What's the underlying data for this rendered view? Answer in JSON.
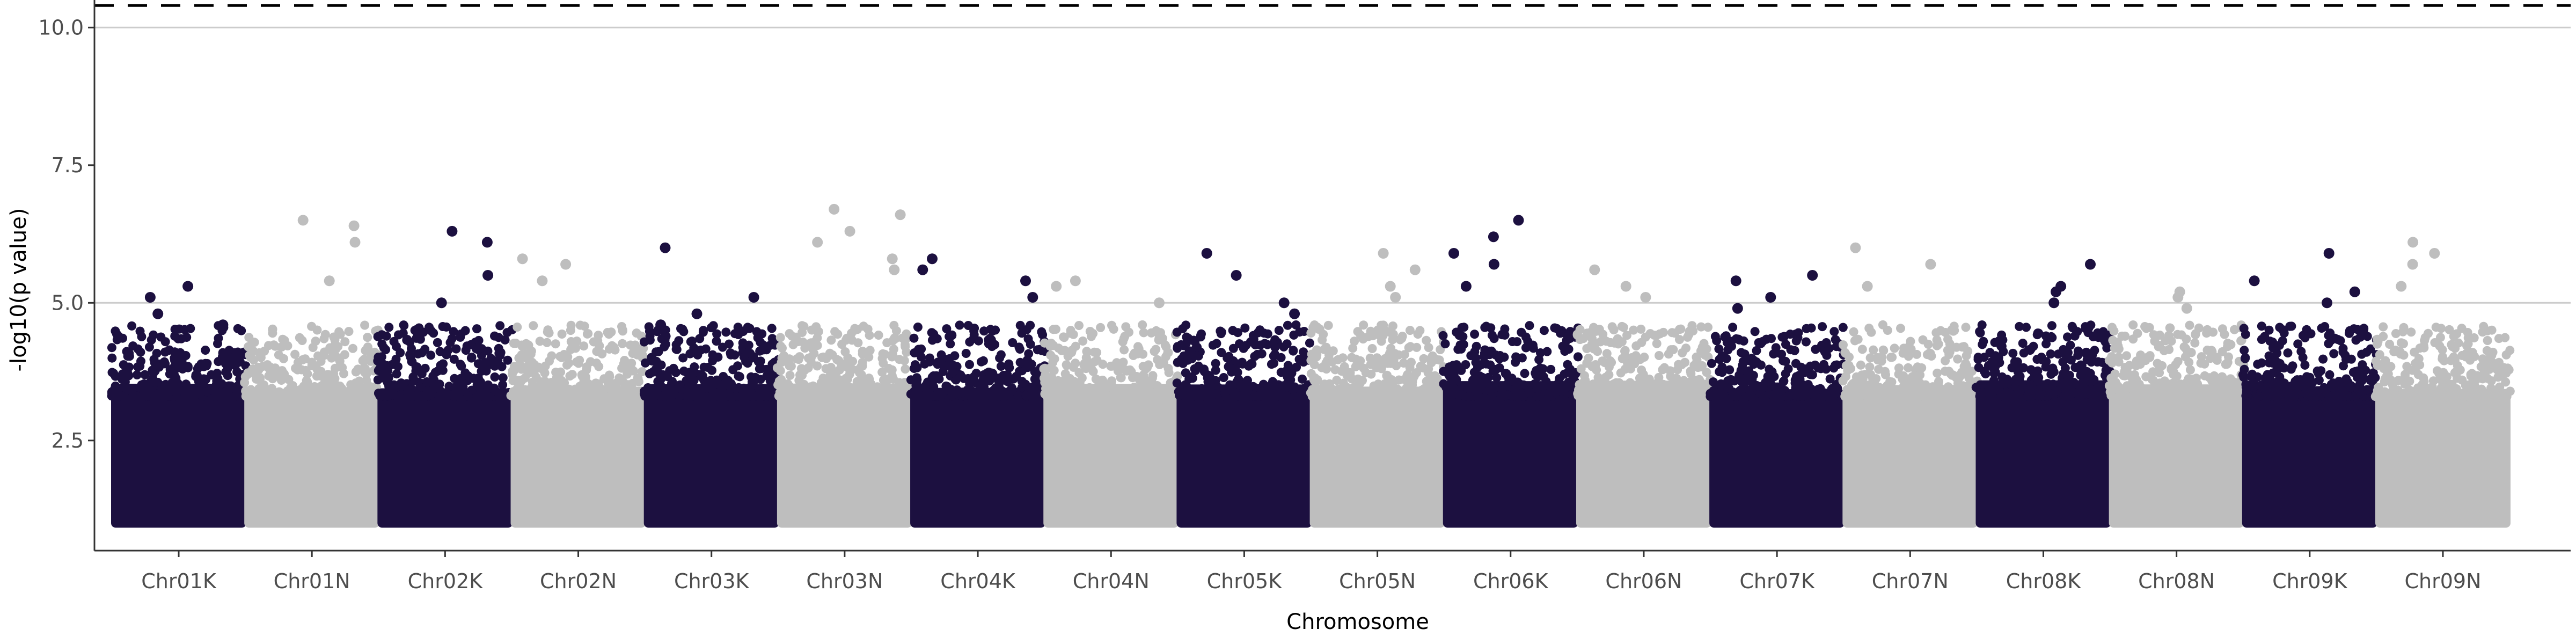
{
  "chart_data": {
    "type": "scatter",
    "xlabel": "Chromosome",
    "ylabel": "-log10(p value)",
    "ylim": [
      0.5,
      10.5
    ],
    "yticks": [
      "2.5",
      "5.0",
      "7.5",
      "10.0"
    ],
    "grid": "horizontal major lines at 5.0 and 10.0",
    "threshold": 10.4,
    "threshold_style": "dashed",
    "colors": {
      "odd": "#1c1040",
      "even": "#bebebe",
      "threshold": "#000000",
      "grid": "#cccccc",
      "axis": "#333333"
    },
    "categories": [
      "Chr01K",
      "Chr01N",
      "Chr02K",
      "Chr02N",
      "Chr03K",
      "Chr03N",
      "Chr04K",
      "Chr04N",
      "Chr05K",
      "Chr05N",
      "Chr06K",
      "Chr06N",
      "Chr07K",
      "Chr07N",
      "Chr08K",
      "Chr08N",
      "Chr09K",
      "Chr09N"
    ],
    "max_values": [
      5.3,
      6.5,
      6.3,
      5.8,
      6.0,
      6.7,
      5.8,
      5.4,
      5.9,
      5.9,
      6.5,
      5.6,
      5.5,
      6.0,
      5.7,
      5.2,
      5.9,
      6.1
    ],
    "series": [
      {
        "values": [
          {
            "x": "Chr01K",
            "y": 5.3
          },
          {
            "x": "Chr01K",
            "y": 5.1
          },
          {
            "x": "Chr01K",
            "y": 4.8
          },
          {
            "x": "Chr01K",
            "y": 4.6
          },
          {
            "x": "Chr01N",
            "y": 6.5
          },
          {
            "x": "Chr01N",
            "y": 6.4
          },
          {
            "x": "Chr01N",
            "y": 6.1
          },
          {
            "x": "Chr01N",
            "y": 5.4
          },
          {
            "x": "Chr02K",
            "y": 6.3
          },
          {
            "x": "Chr02K",
            "y": 6.1
          },
          {
            "x": "Chr02K",
            "y": 5.5
          },
          {
            "x": "Chr02K",
            "y": 5.0
          },
          {
            "x": "Chr02N",
            "y": 5.8
          },
          {
            "x": "Chr02N",
            "y": 5.7
          },
          {
            "x": "Chr02N",
            "y": 5.4
          },
          {
            "x": "Chr03K",
            "y": 6.0
          },
          {
            "x": "Chr03K",
            "y": 5.1
          },
          {
            "x": "Chr03K",
            "y": 4.8
          },
          {
            "x": "Chr03K",
            "y": 4.6
          },
          {
            "x": "Chr03N",
            "y": 6.7
          },
          {
            "x": "Chr03N",
            "y": 6.6
          },
          {
            "x": "Chr03N",
            "y": 6.3
          },
          {
            "x": "Chr03N",
            "y": 6.1
          },
          {
            "x": "Chr03N",
            "y": 5.8
          },
          {
            "x": "Chr03N",
            "y": 5.6
          },
          {
            "x": "Chr04K",
            "y": 5.8
          },
          {
            "x": "Chr04K",
            "y": 5.6
          },
          {
            "x": "Chr04K",
            "y": 5.4
          },
          {
            "x": "Chr04K",
            "y": 5.1
          },
          {
            "x": "Chr04N",
            "y": 5.4
          },
          {
            "x": "Chr04N",
            "y": 5.3
          },
          {
            "x": "Chr04N",
            "y": 5.0
          },
          {
            "x": "Chr05K",
            "y": 5.9
          },
          {
            "x": "Chr05K",
            "y": 5.5
          },
          {
            "x": "Chr05K",
            "y": 5.0
          },
          {
            "x": "Chr05K",
            "y": 4.8
          },
          {
            "x": "Chr05N",
            "y": 5.9
          },
          {
            "x": "Chr05N",
            "y": 5.6
          },
          {
            "x": "Chr05N",
            "y": 5.3
          },
          {
            "x": "Chr05N",
            "y": 5.1
          },
          {
            "x": "Chr06K",
            "y": 6.5
          },
          {
            "x": "Chr06K",
            "y": 6.2
          },
          {
            "x": "Chr06K",
            "y": 5.9
          },
          {
            "x": "Chr06K",
            "y": 5.7
          },
          {
            "x": "Chr06K",
            "y": 5.3
          },
          {
            "x": "Chr06N",
            "y": 5.6
          },
          {
            "x": "Chr06N",
            "y": 5.3
          },
          {
            "x": "Chr06N",
            "y": 5.1
          },
          {
            "x": "Chr07K",
            "y": 5.5
          },
          {
            "x": "Chr07K",
            "y": 5.4
          },
          {
            "x": "Chr07K",
            "y": 5.1
          },
          {
            "x": "Chr07K",
            "y": 4.9
          },
          {
            "x": "Chr07N",
            "y": 6.0
          },
          {
            "x": "Chr07N",
            "y": 5.7
          },
          {
            "x": "Chr07N",
            "y": 5.3
          },
          {
            "x": "Chr08K",
            "y": 5.7
          },
          {
            "x": "Chr08K",
            "y": 5.3
          },
          {
            "x": "Chr08K",
            "y": 5.2
          },
          {
            "x": "Chr08K",
            "y": 5.0
          },
          {
            "x": "Chr08N",
            "y": 5.2
          },
          {
            "x": "Chr08N",
            "y": 5.1
          },
          {
            "x": "Chr08N",
            "y": 4.9
          },
          {
            "x": "Chr09K",
            "y": 5.9
          },
          {
            "x": "Chr09K",
            "y": 5.4
          },
          {
            "x": "Chr09K",
            "y": 5.2
          },
          {
            "x": "Chr09K",
            "y": 5.0
          },
          {
            "x": "Chr09N",
            "y": 6.1
          },
          {
            "x": "Chr09N",
            "y": 5.9
          },
          {
            "x": "Chr09N",
            "y": 5.7
          },
          {
            "x": "Chr09N",
            "y": 5.3
          }
        ]
      }
    ]
  }
}
